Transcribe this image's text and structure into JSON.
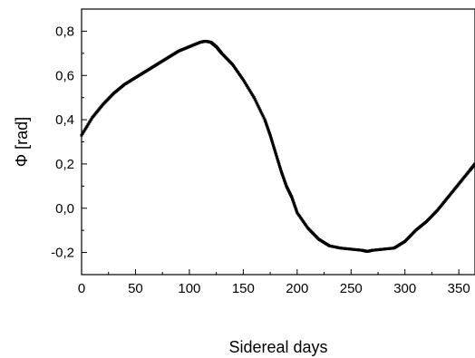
{
  "chart_data": {
    "type": "scatter",
    "title": "",
    "xlabel": "Sidereal days",
    "ylabel": "Φ  [rad]",
    "xlim": [
      0,
      365
    ],
    "ylim": [
      -0.3,
      0.9
    ],
    "xticks": [
      0,
      50,
      100,
      150,
      200,
      250,
      300,
      350
    ],
    "xtick_labels": [
      "0",
      "50",
      "100",
      "150",
      "200",
      "250",
      "300",
      "350"
    ],
    "yticks": [
      -0.2,
      0.0,
      0.2,
      0.4,
      0.6,
      0.8
    ],
    "ytick_labels": [
      "-0,2",
      "0,0",
      "0,2",
      "0,4",
      "0,6",
      "0,8"
    ],
    "grid": false,
    "legend": "none",
    "marker_color": "#000000",
    "series": [
      {
        "x": [
          0,
          10,
          20,
          30,
          40,
          50,
          60,
          70,
          80,
          90,
          100,
          110,
          115,
          120,
          125,
          130,
          140,
          150,
          160,
          170,
          175,
          180,
          185,
          190,
          195,
          200,
          210,
          220,
          230,
          240,
          250,
          260,
          265,
          270,
          280,
          290,
          300,
          310,
          320,
          330,
          340,
          350,
          360,
          365
        ],
        "y": [
          0.33,
          0.41,
          0.47,
          0.52,
          0.56,
          0.59,
          0.62,
          0.65,
          0.68,
          0.71,
          0.73,
          0.75,
          0.755,
          0.75,
          0.73,
          0.7,
          0.65,
          0.58,
          0.5,
          0.4,
          0.33,
          0.25,
          0.17,
          0.1,
          0.05,
          -0.02,
          -0.09,
          -0.14,
          -0.17,
          -0.18,
          -0.185,
          -0.19,
          -0.195,
          -0.19,
          -0.185,
          -0.18,
          -0.15,
          -0.1,
          -0.06,
          -0.01,
          0.05,
          0.11,
          0.17,
          0.2
        ]
      }
    ]
  }
}
